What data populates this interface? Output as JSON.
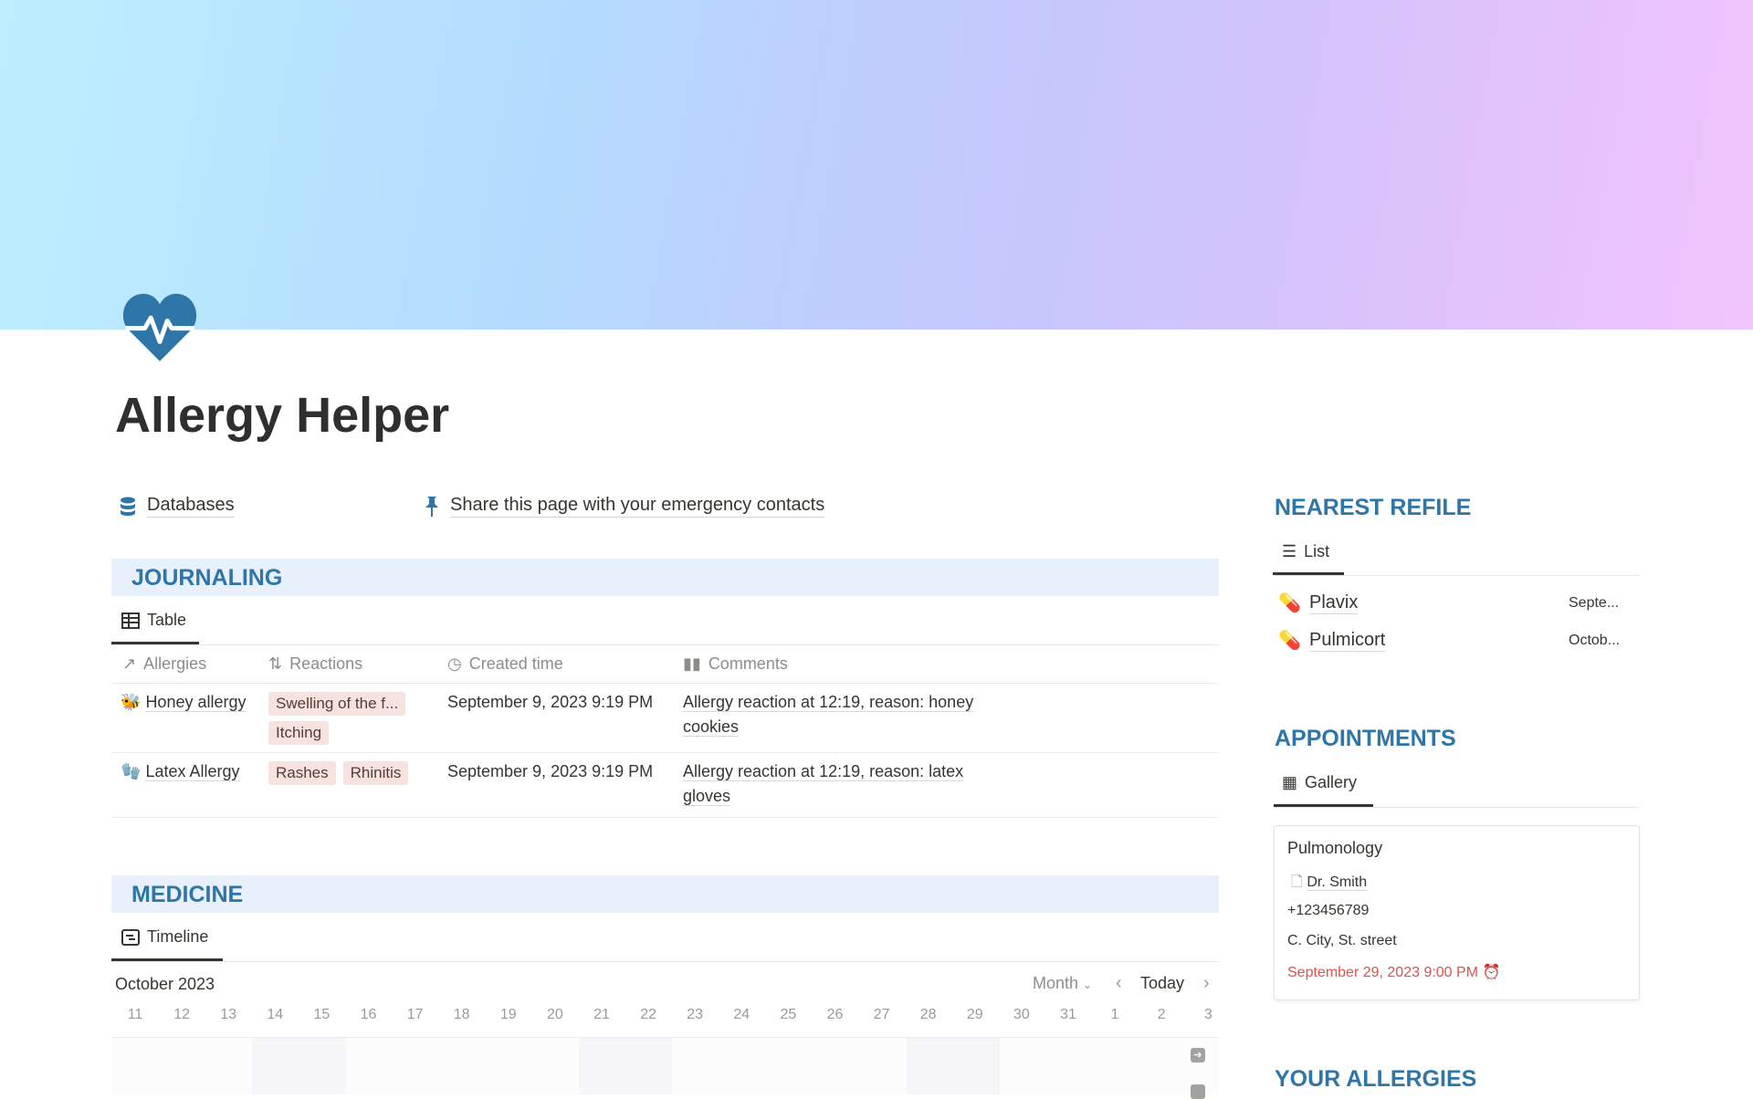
{
  "page": {
    "title": "Allergy Helper",
    "icon": "heart-pulse-icon",
    "accent": "#2e75a8"
  },
  "links": {
    "databases": "Databases",
    "share": "Share this page with your emergency contacts"
  },
  "journaling": {
    "heading": "JOURNALING",
    "view": "Table",
    "columns": [
      "Allergies",
      "Reactions",
      "Created time",
      "Comments"
    ],
    "rows": [
      {
        "icon": "bee-icon",
        "name": "Honey allergy",
        "reactions": [
          "Swelling of the f...",
          "Itching"
        ],
        "created": "September 9, 2023 9:19 PM",
        "comment": "Allergy reaction at 12:19, reason: honey cookies"
      },
      {
        "icon": "gloves-icon",
        "name": "Latex Allergy",
        "reactions": [
          "Rashes",
          "Rhinitis"
        ],
        "created": "September 9, 2023 9:19 PM",
        "comment": "Allergy reaction at 12:19, reason: latex gloves"
      }
    ]
  },
  "medicine": {
    "heading": "MEDICINE",
    "view": "Timeline",
    "month": "October 2023",
    "scale": "Month",
    "today": "Today",
    "days": [
      "11",
      "12",
      "13",
      "14",
      "15",
      "16",
      "17",
      "18",
      "19",
      "20",
      "21",
      "22",
      "23",
      "24",
      "25",
      "26",
      "27",
      "28",
      "29",
      "30",
      "31",
      "1",
      "2",
      "3"
    ]
  },
  "refill": {
    "heading": "NEAREST REFILE",
    "view": "List",
    "items": [
      {
        "name": "Plavix",
        "date": "Septe..."
      },
      {
        "name": "Pulmicort",
        "date": "Octob..."
      }
    ]
  },
  "appointments": {
    "heading": "APPOINTMENTS",
    "view": "Gallery",
    "card": {
      "title": "Pulmonology",
      "doctor": "Dr. Smith",
      "phone": "+123456789",
      "address": "C. City, St. street",
      "datetime": "September 29, 2023 9:00 PM",
      "datetime_color": "#d9534f"
    }
  },
  "allergies": {
    "heading": "YOUR ALLERGIES"
  }
}
